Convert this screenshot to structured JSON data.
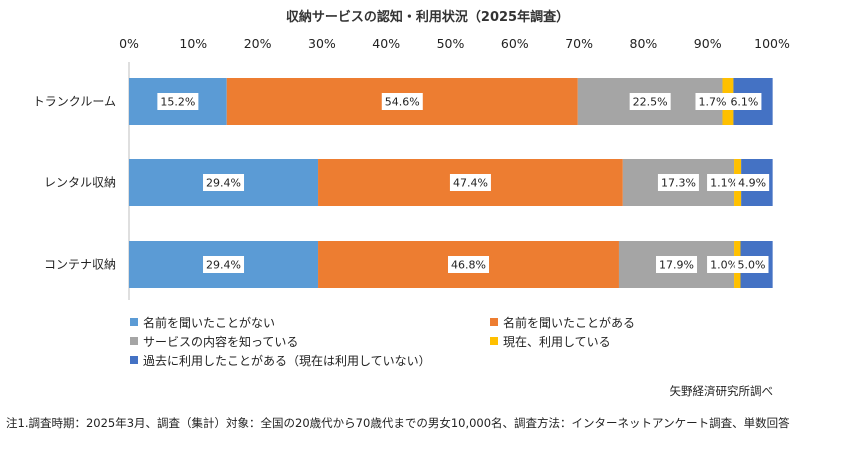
{
  "chart_data": {
    "type": "bar",
    "orientation": "horizontal",
    "stacked": true,
    "title": "収納サービスの認知・利用状況（2025年調査）",
    "categories": [
      "トランクルーム",
      "レンタル収納",
      "コンテナ収納"
    ],
    "x_ticks": [
      "0%",
      "10%",
      "20%",
      "30%",
      "40%",
      "50%",
      "60%",
      "70%",
      "80%",
      "90%",
      "100%"
    ],
    "xlim": [
      0,
      100
    ],
    "legend_position": "bottom",
    "series": [
      {
        "name": "名前を聞いたことがない",
        "values": [
          15.2,
          29.4,
          29.4
        ],
        "labels": [
          "15.2%",
          "29.4%",
          "29.4%"
        ],
        "color": "#5b9bd5"
      },
      {
        "name": "名前を聞いたことがある",
        "values": [
          54.6,
          47.4,
          46.8
        ],
        "labels": [
          "54.6%",
          "47.4%",
          "46.8%"
        ],
        "color": "#ed7d31"
      },
      {
        "name": "サービスの内容を知っている",
        "values": [
          22.5,
          17.3,
          17.9
        ],
        "labels": [
          "22.5%",
          "17.3%",
          "17.9%"
        ],
        "color": "#a5a5a5"
      },
      {
        "name": "現在、利用している",
        "values": [
          1.7,
          1.1,
          1.0
        ],
        "labels": [
          "1.7%",
          "1.1%",
          "1.0%"
        ],
        "color": "#ffc000"
      },
      {
        "name": "過去に利用したことがある（現在は利用していない）",
        "values": [
          6.1,
          4.9,
          5.0
        ],
        "labels": [
          "6.1%",
          "4.9%",
          "5.0%"
        ],
        "color": "#4472c4"
      }
    ]
  },
  "source_note": "矢野経済研究所調べ",
  "footnote": "注1.調査時期：2025年3月、調査（集計）対象：全国の20歳代から70歳代までの男女10,000名、調査方法：インターネットアンケート調査、単数回答"
}
